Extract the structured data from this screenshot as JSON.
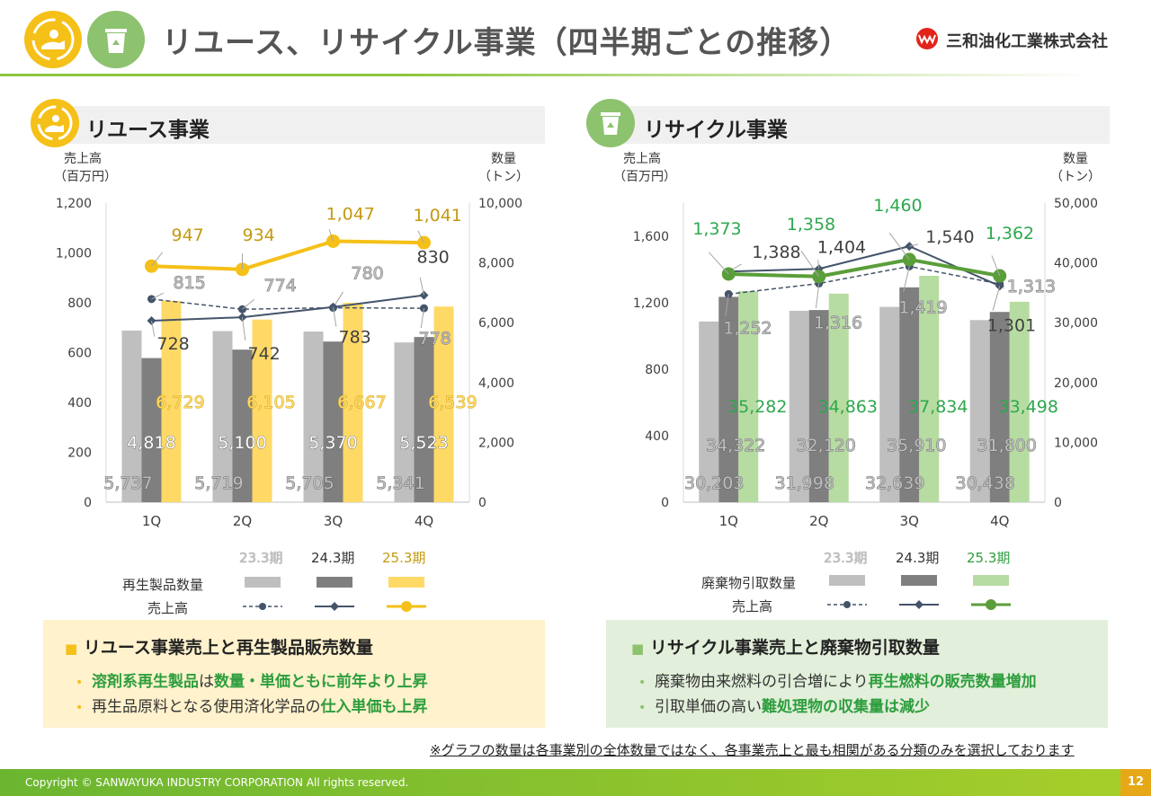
{
  "header": {
    "title": "リユース、リサイクル事業（四半期ごとの推移）",
    "company": "三和油化工業株式会社",
    "reuse_icon": "reuse-hand-icon",
    "recycle_icon": "recycle-bin-icon"
  },
  "colors": {
    "reuse_accent": "#f5c018",
    "recycle_accent": "#8dc26f",
    "gray_light": "#bfbfbf",
    "gray_dark": "#7f7f7f",
    "line_dark": "#44546a"
  },
  "reuse": {
    "section_title": "リユース事業",
    "left_axis_label_1": "売上高",
    "left_axis_label_2": "（百万円）",
    "right_axis_label_1": "数量",
    "right_axis_label_2": "（トン）",
    "legend": {
      "period_23": "23.3期",
      "period_24": "24.3期",
      "period_25": "25.3期",
      "bar_label": "再生製品数量",
      "line_label": "売上高"
    },
    "box_title": "リユース事業売上と再生製品販売数量",
    "bullet1_em1": "溶剤系再生製品",
    "bullet1_mid": "は",
    "bullet1_em2": "数量・単価ともに前年より上昇",
    "bullet2_pre": "再生品原料となる使用済化学品の",
    "bullet2_em": "仕入単価も上昇"
  },
  "recycle": {
    "section_title": "リサイクル事業",
    "left_axis_label_1": "売上高",
    "left_axis_label_2": "（百万円）",
    "right_axis_label_1": "数量",
    "right_axis_label_2": "（トン）",
    "legend": {
      "period_23": "23.3期",
      "period_24": "24.3期",
      "period_25": "25.3期",
      "bar_label": "廃棄物引取数量",
      "line_label": "売上高"
    },
    "box_title": "リサイクル事業売上と廃棄物引取数量",
    "bullet1_pre": "廃棄物由来燃料の引合増により",
    "bullet1_em": "再生燃料の販売数量増加",
    "bullet2_pre": "引取単価の高い",
    "bullet2_em": "難処理物の収集量は減少"
  },
  "footnote": "※グラフの数量は各事業別の全体数量ではなく、各事業売上と最も相関がある分類のみを選択しております",
  "footer": {
    "copyright": "Copyright © SANWAYUKA INDUSTRY CORPORATION All rights reserved.",
    "page": "12"
  },
  "chart_data": [
    {
      "type": "bar",
      "name": "リユース事業",
      "categories": [
        "1Q",
        "2Q",
        "3Q",
        "4Q"
      ],
      "ylim_left": [
        0,
        1200
      ],
      "ylim_right": [
        0,
        10000
      ],
      "left_ticks": [
        "0",
        "200",
        "400",
        "600",
        "800",
        "1,000",
        "1,200"
      ],
      "right_ticks": [
        "0",
        "2,000",
        "4,000",
        "6,000",
        "8,000",
        "10,000"
      ],
      "bars": [
        {
          "name": "23.3期",
          "axis": "right",
          "values": [
            5737,
            5719,
            5705,
            5341
          ],
          "labels": [
            "5,737",
            "5,719",
            "5,705",
            "5,341"
          ]
        },
        {
          "name": "24.3期",
          "axis": "right",
          "values": [
            4818,
            5100,
            5370,
            5523
          ],
          "labels": [
            "4,818",
            "5,100",
            "5,370",
            "5,523"
          ]
        },
        {
          "name": "25.3期",
          "axis": "right",
          "values": [
            6729,
            6105,
            6667,
            6539
          ],
          "labels": [
            "6,729",
            "6,105",
            "6,667",
            "6,539"
          ]
        }
      ],
      "lines": [
        {
          "name": "23.3期",
          "axis": "left",
          "values": [
            815,
            774,
            780,
            778
          ],
          "labels": [
            "815",
            "774",
            "780",
            "778"
          ]
        },
        {
          "name": "24.3期",
          "axis": "left",
          "values": [
            728,
            742,
            783,
            830
          ],
          "labels": [
            "728",
            "742",
            "783",
            "830"
          ]
        },
        {
          "name": "25.3期",
          "axis": "left",
          "values": [
            947,
            934,
            1047,
            1041
          ],
          "labels": [
            "947",
            "934",
            "1,047",
            "1,041"
          ]
        }
      ]
    },
    {
      "type": "bar",
      "name": "リサイクル事業",
      "categories": [
        "1Q",
        "2Q",
        "3Q",
        "4Q"
      ],
      "ylim_left": [
        0,
        1800
      ],
      "ylim_right": [
        0,
        50000
      ],
      "left_ticks": [
        "0",
        "400",
        "800",
        "1,200",
        "1,600"
      ],
      "right_ticks": [
        "0",
        "10,000",
        "20,000",
        "30,000",
        "40,000",
        "50,000"
      ],
      "bars": [
        {
          "name": "23.3期",
          "axis": "right",
          "values": [
            30203,
            31998,
            32639,
            30438
          ],
          "labels": [
            "30,203",
            "31,998",
            "32,639",
            "30,438"
          ]
        },
        {
          "name": "24.3期",
          "axis": "right",
          "values": [
            34322,
            32120,
            35910,
            31800
          ],
          "labels": [
            "34,322",
            "32,120",
            "35,910",
            "31,800"
          ]
        },
        {
          "name": "25.3期",
          "axis": "right",
          "values": [
            35282,
            34863,
            37834,
            33498
          ],
          "labels": [
            "35,282",
            "34,863",
            "37,834",
            "33,498"
          ]
        }
      ],
      "lines": [
        {
          "name": "23.3期",
          "axis": "left",
          "values": [
            1252,
            1316,
            1419,
            1313
          ],
          "labels": [
            "1,252",
            "1,316",
            "1,419",
            "1,313"
          ]
        },
        {
          "name": "24.3期",
          "axis": "left",
          "values": [
            1388,
            1404,
            1540,
            1301
          ],
          "labels": [
            "1,388",
            "1,404",
            "1,540",
            "1,301"
          ]
        },
        {
          "name": "25.3期",
          "axis": "left",
          "values": [
            1373,
            1358,
            1460,
            1362
          ],
          "labels": [
            "1,373",
            "1,358",
            "1,460",
            "1,362"
          ]
        }
      ]
    }
  ]
}
